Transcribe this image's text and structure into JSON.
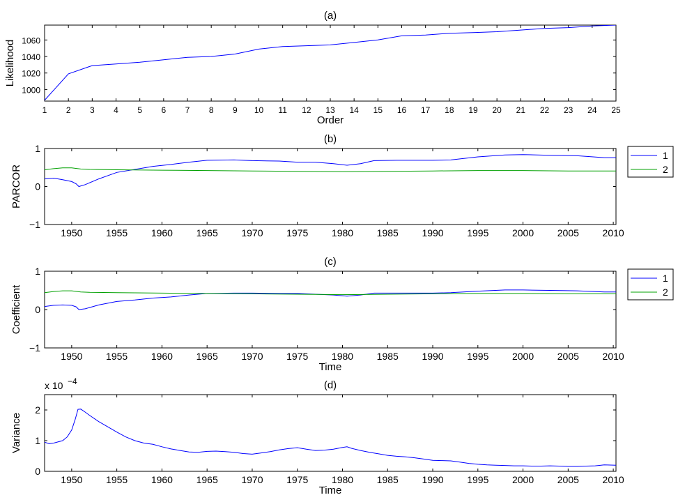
{
  "chart_data": [
    {
      "id": "a",
      "type": "line",
      "title": "(a)",
      "xlabel": "Order",
      "ylabel": "Likelihood",
      "xlim": [
        1,
        25
      ],
      "ylim": [
        986,
        1078
      ],
      "xticks": [
        1,
        2,
        3,
        4,
        5,
        6,
        7,
        8,
        9,
        10,
        11,
        12,
        13,
        14,
        15,
        16,
        17,
        18,
        19,
        20,
        21,
        22,
        23,
        24,
        25
      ],
      "yticks": [
        1000,
        1020,
        1040,
        1060
      ],
      "series": [
        {
          "name": "likelihood",
          "color": "#0000ff",
          "x": [
            1,
            2,
            3,
            4,
            5,
            6,
            7,
            8,
            9,
            10,
            11,
            12,
            13,
            14,
            15,
            16,
            17,
            18,
            19,
            20,
            21,
            22,
            23,
            24,
            25
          ],
          "y": [
            987,
            1019,
            1029,
            1031,
            1033,
            1036,
            1039,
            1040,
            1043,
            1049,
            1052,
            1053,
            1054,
            1057,
            1060,
            1065,
            1066,
            1068,
            1069,
            1070,
            1072,
            1074,
            1075,
            1077,
            1078
          ]
        }
      ]
    },
    {
      "id": "b",
      "type": "line",
      "title": "(b)",
      "xlabel": "",
      "ylabel": "PARCOR",
      "xlim": [
        1947,
        2010.3
      ],
      "ylim": [
        -1,
        1
      ],
      "xticks": [
        1950,
        1955,
        1960,
        1965,
        1970,
        1975,
        1980,
        1985,
        1990,
        1995,
        2000,
        2005,
        2010
      ],
      "yticks": [
        -1,
        0,
        1
      ],
      "legend": [
        "1",
        "2"
      ],
      "series": [
        {
          "name": "1",
          "color": "#0000ff",
          "x": [
            1947,
            1948,
            1949,
            1950,
            1950.5,
            1950.8,
            1951.5,
            1953,
            1955,
            1957,
            1959,
            1961,
            1963,
            1965,
            1968,
            1970,
            1973,
            1975,
            1977,
            1979,
            1980.5,
            1982,
            1983.5,
            1986,
            1990,
            1992,
            1995,
            1998,
            2000,
            2003,
            2006,
            2009,
            2010.3
          ],
          "y": [
            0.2,
            0.22,
            0.18,
            0.13,
            0.07,
            0.0,
            0.05,
            0.2,
            0.37,
            0.45,
            0.53,
            0.58,
            0.64,
            0.69,
            0.7,
            0.68,
            0.67,
            0.64,
            0.64,
            0.6,
            0.56,
            0.6,
            0.68,
            0.69,
            0.69,
            0.7,
            0.78,
            0.83,
            0.84,
            0.82,
            0.81,
            0.76,
            0.76
          ]
        },
        {
          "name": "2",
          "color": "#00a000",
          "x": [
            1947,
            1948,
            1949,
            1950,
            1951,
            1952,
            1955,
            1960,
            1965,
            1970,
            1975,
            1980,
            1985,
            1990,
            1995,
            2000,
            2005,
            2010.3
          ],
          "y": [
            0.44,
            0.47,
            0.49,
            0.49,
            0.46,
            0.45,
            0.44,
            0.43,
            0.42,
            0.41,
            0.4,
            0.39,
            0.4,
            0.41,
            0.42,
            0.42,
            0.41,
            0.41
          ]
        }
      ]
    },
    {
      "id": "c",
      "type": "line",
      "title": "(c)",
      "xlabel": "Time",
      "ylabel": "Coefficient",
      "xlim": [
        1947,
        2010.3
      ],
      "ylim": [
        -1,
        1
      ],
      "xticks": [
        1950,
        1955,
        1960,
        1965,
        1970,
        1975,
        1980,
        1985,
        1990,
        1995,
        2000,
        2005,
        2010
      ],
      "yticks": [
        -1,
        0,
        1
      ],
      "legend": [
        "1",
        "2"
      ],
      "series": [
        {
          "name": "1",
          "color": "#0000ff",
          "x": [
            1947,
            1948,
            1949,
            1950,
            1950.5,
            1950.8,
            1951.5,
            1953,
            1955,
            1957,
            1959,
            1961,
            1963,
            1965,
            1968,
            1970,
            1973,
            1975,
            1977,
            1979,
            1980.5,
            1982,
            1983.5,
            1986,
            1990,
            1992,
            1995,
            1998,
            2000,
            2003,
            2006,
            2009,
            2010.3
          ],
          "y": [
            0.08,
            0.11,
            0.12,
            0.11,
            0.07,
            0.0,
            0.02,
            0.12,
            0.21,
            0.25,
            0.3,
            0.33,
            0.38,
            0.42,
            0.43,
            0.43,
            0.42,
            0.42,
            0.4,
            0.38,
            0.35,
            0.38,
            0.43,
            0.43,
            0.43,
            0.44,
            0.48,
            0.51,
            0.51,
            0.5,
            0.49,
            0.46,
            0.46
          ]
        },
        {
          "name": "2",
          "color": "#00a000",
          "x": [
            1947,
            1948,
            1949,
            1950,
            1951,
            1952,
            1955,
            1960,
            1965,
            1970,
            1975,
            1980,
            1985,
            1990,
            1995,
            2000,
            2005,
            2010.3
          ],
          "y": [
            0.44,
            0.47,
            0.49,
            0.49,
            0.46,
            0.45,
            0.44,
            0.43,
            0.42,
            0.41,
            0.4,
            0.39,
            0.4,
            0.41,
            0.42,
            0.42,
            0.41,
            0.41
          ]
        }
      ]
    },
    {
      "id": "d",
      "type": "line",
      "title": "(d)",
      "xlabel": "Time",
      "ylabel": "Variance",
      "exponent_label": "x 10",
      "exponent_power": "−4",
      "xlim": [
        1947,
        2010.3
      ],
      "ylim": [
        0,
        2.5
      ],
      "xticks": [
        1950,
        1955,
        1960,
        1965,
        1970,
        1975,
        1980,
        1985,
        1990,
        1995,
        2000,
        2005,
        2010
      ],
      "yticks": [
        0,
        1,
        2
      ],
      "series": [
        {
          "name": "variance",
          "color": "#0000ff",
          "x": [
            1947,
            1947.5,
            1948,
            1949,
            1949.5,
            1950,
            1950.4,
            1950.7,
            1951,
            1951.5,
            1952,
            1953,
            1954,
            1955,
            1956,
            1957,
            1958,
            1959,
            1960,
            1961,
            1962,
            1963,
            1964,
            1965,
            1966,
            1967,
            1968,
            1969,
            1970,
            1971,
            1972,
            1973,
            1974,
            1975,
            1976,
            1977,
            1978,
            1979,
            1980,
            1980.5,
            1981,
            1982,
            1983,
            1984,
            1985,
            1986,
            1987,
            1988,
            1989,
            1990,
            1991,
            1992,
            1993,
            1994,
            1995,
            1996,
            1997,
            1998,
            1999,
            2000,
            2001,
            2002,
            2003,
            2004,
            2005,
            2006,
            2007,
            2008,
            2009,
            2010.3
          ],
          "y": [
            0.95,
            0.9,
            0.92,
            1.0,
            1.12,
            1.35,
            1.7,
            2.02,
            2.03,
            1.93,
            1.82,
            1.62,
            1.45,
            1.28,
            1.12,
            1.0,
            0.92,
            0.88,
            0.8,
            0.73,
            0.68,
            0.63,
            0.62,
            0.65,
            0.66,
            0.64,
            0.62,
            0.58,
            0.56,
            0.6,
            0.64,
            0.7,
            0.74,
            0.77,
            0.72,
            0.68,
            0.69,
            0.72,
            0.78,
            0.8,
            0.75,
            0.68,
            0.62,
            0.57,
            0.52,
            0.49,
            0.47,
            0.44,
            0.4,
            0.36,
            0.35,
            0.34,
            0.3,
            0.26,
            0.23,
            0.21,
            0.2,
            0.19,
            0.18,
            0.18,
            0.17,
            0.17,
            0.18,
            0.17,
            0.16,
            0.16,
            0.17,
            0.18,
            0.21,
            0.2
          ]
        }
      ]
    }
  ]
}
